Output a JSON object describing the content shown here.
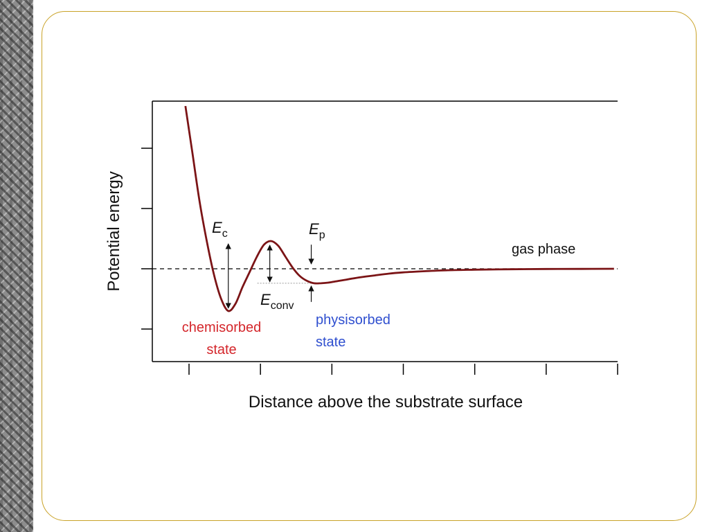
{
  "chart_data": {
    "type": "line",
    "title": "",
    "xlabel": "Distance above the substrate surface",
    "ylabel": "Potential energy",
    "xlim": [
      0,
      6
    ],
    "ylim": [
      -1,
      2.8
    ],
    "x_ticks": [
      0,
      1,
      2,
      3,
      4,
      5,
      6
    ],
    "y_ticks": [
      -1,
      0,
      1,
      2
    ],
    "grid": false,
    "zero_line": 0,
    "series": [
      {
        "color": "#7b1416",
        "x": [
          -0.05,
          0.05,
          0.15,
          0.25,
          0.35,
          0.45,
          0.55,
          0.65,
          0.75,
          0.85,
          0.95,
          1.05,
          1.15,
          1.25,
          1.35,
          1.45,
          1.55,
          1.65,
          1.75,
          1.85,
          1.95,
          2.05,
          2.2,
          2.4,
          2.6,
          2.8,
          3.0,
          3.3,
          3.6,
          4.0,
          4.5,
          5.0,
          5.5,
          5.95
        ],
        "y": [
          2.7,
          1.9,
          1.1,
          0.45,
          -0.1,
          -0.5,
          -0.7,
          -0.58,
          -0.3,
          -0.05,
          0.2,
          0.4,
          0.46,
          0.38,
          0.2,
          0.02,
          -0.12,
          -0.2,
          -0.24,
          -0.24,
          -0.23,
          -0.21,
          -0.18,
          -0.14,
          -0.11,
          -0.08,
          -0.06,
          -0.04,
          -0.025,
          -0.015,
          -0.008,
          -0.004,
          -0.002,
          0
        ]
      }
    ],
    "annotations": {
      "ec_symbol": "E",
      "ec_sub": "c",
      "ep_symbol": "E",
      "ep_sub": "p",
      "econv_symbol": "E",
      "econv_sub": "conv",
      "gas_phase": "gas phase",
      "chemisorbed_line1": "chemisorbed",
      "chemisorbed_line2": "state",
      "physisorbed_line1": "physisorbed",
      "physisorbed_line2": "state"
    },
    "annotation_colors": {
      "chemisorbed": "#d4262b",
      "physisorbed": "#2f4fcf",
      "default": "#111111"
    }
  }
}
